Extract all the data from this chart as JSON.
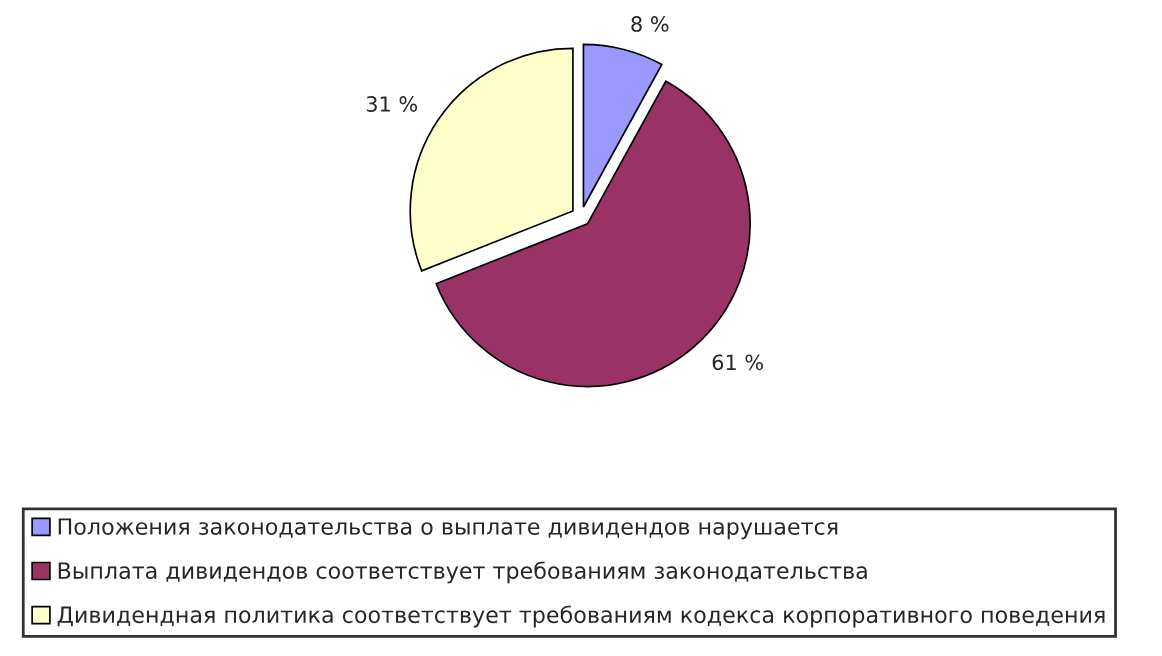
{
  "chart_data": {
    "type": "pie",
    "categories": [
      "Положения законодательства о выплате дивидендов нарушается",
      "Выплата дивидендов соответствует требованиям законодательства",
      "Дивидендная политика соответствует требованиям кодекса корпоративного поведения"
    ],
    "values": [
      8,
      61,
      31
    ],
    "colors": [
      "#9999ff",
      "#993366",
      "#ffffcc"
    ],
    "value_labels": [
      "8 %",
      "61 %",
      "31 %"
    ],
    "legend": "bottom"
  }
}
